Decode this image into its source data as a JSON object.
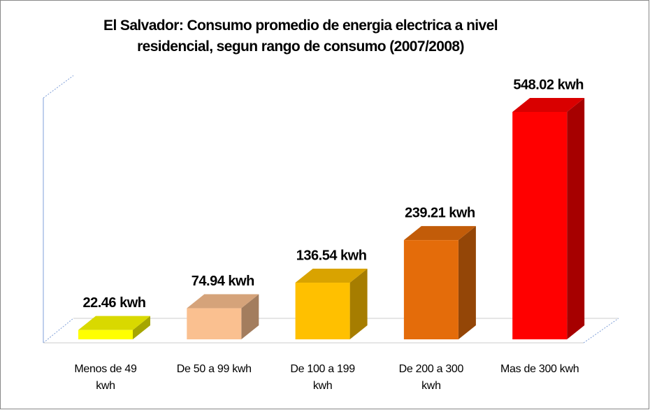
{
  "chart_data": {
    "type": "bar3d",
    "title": "El Salvador: Consumo promedio de energia electrica a nivel\nresidencial, segun rango de consumo (2007/2008)",
    "categories": [
      "Menos de 49 kwh",
      "De 50 a 99 kwh",
      "De 100 a 199 kwh",
      "De 200 a 300 kwh",
      "Mas de 300 kwh"
    ],
    "values": [
      22.46,
      74.94,
      136.54,
      239.21,
      548.02
    ],
    "value_labels": [
      "22.46 kwh",
      "74.94 kwh",
      "136.54 kwh",
      "239.21 kwh",
      "548.02 kwh"
    ],
    "colors": [
      "#ffff00",
      "#fac090",
      "#ffc000",
      "#e46c0a",
      "#ff0000"
    ]
  }
}
